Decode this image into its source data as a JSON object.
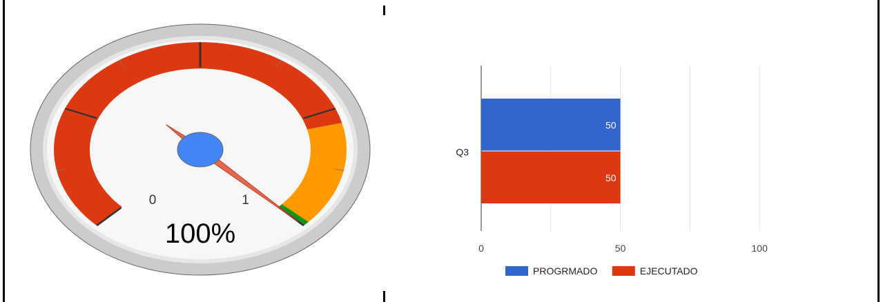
{
  "chart_data": [
    {
      "type": "gauge",
      "min": 0,
      "max": 1,
      "value": 1,
      "min_label": "0",
      "max_label": "1",
      "value_label": "100%",
      "bands": [
        {
          "from": 0,
          "to": 0.78,
          "color": "#dc3912"
        },
        {
          "from": 0.78,
          "to": 0.99,
          "color": "#ff9900"
        },
        {
          "from": 0.99,
          "to": 1,
          "color": "#109618"
        }
      ],
      "needle_color": "#dc3912",
      "hub_color": "#4285f4"
    },
    {
      "type": "bar",
      "orientation": "horizontal",
      "categories": [
        "Q3"
      ],
      "series": [
        {
          "name": "PROGRMADO",
          "values": [
            50
          ],
          "color": "#3366cc"
        },
        {
          "name": "EJECUTADO",
          "values": [
            50
          ],
          "color": "#dc3912"
        }
      ],
      "xlim": [
        0,
        125
      ],
      "x_ticks": [
        "0",
        "50",
        "100"
      ],
      "x_tick_values": [
        0,
        50,
        100
      ],
      "grid": true,
      "legend": "bottom"
    }
  ]
}
